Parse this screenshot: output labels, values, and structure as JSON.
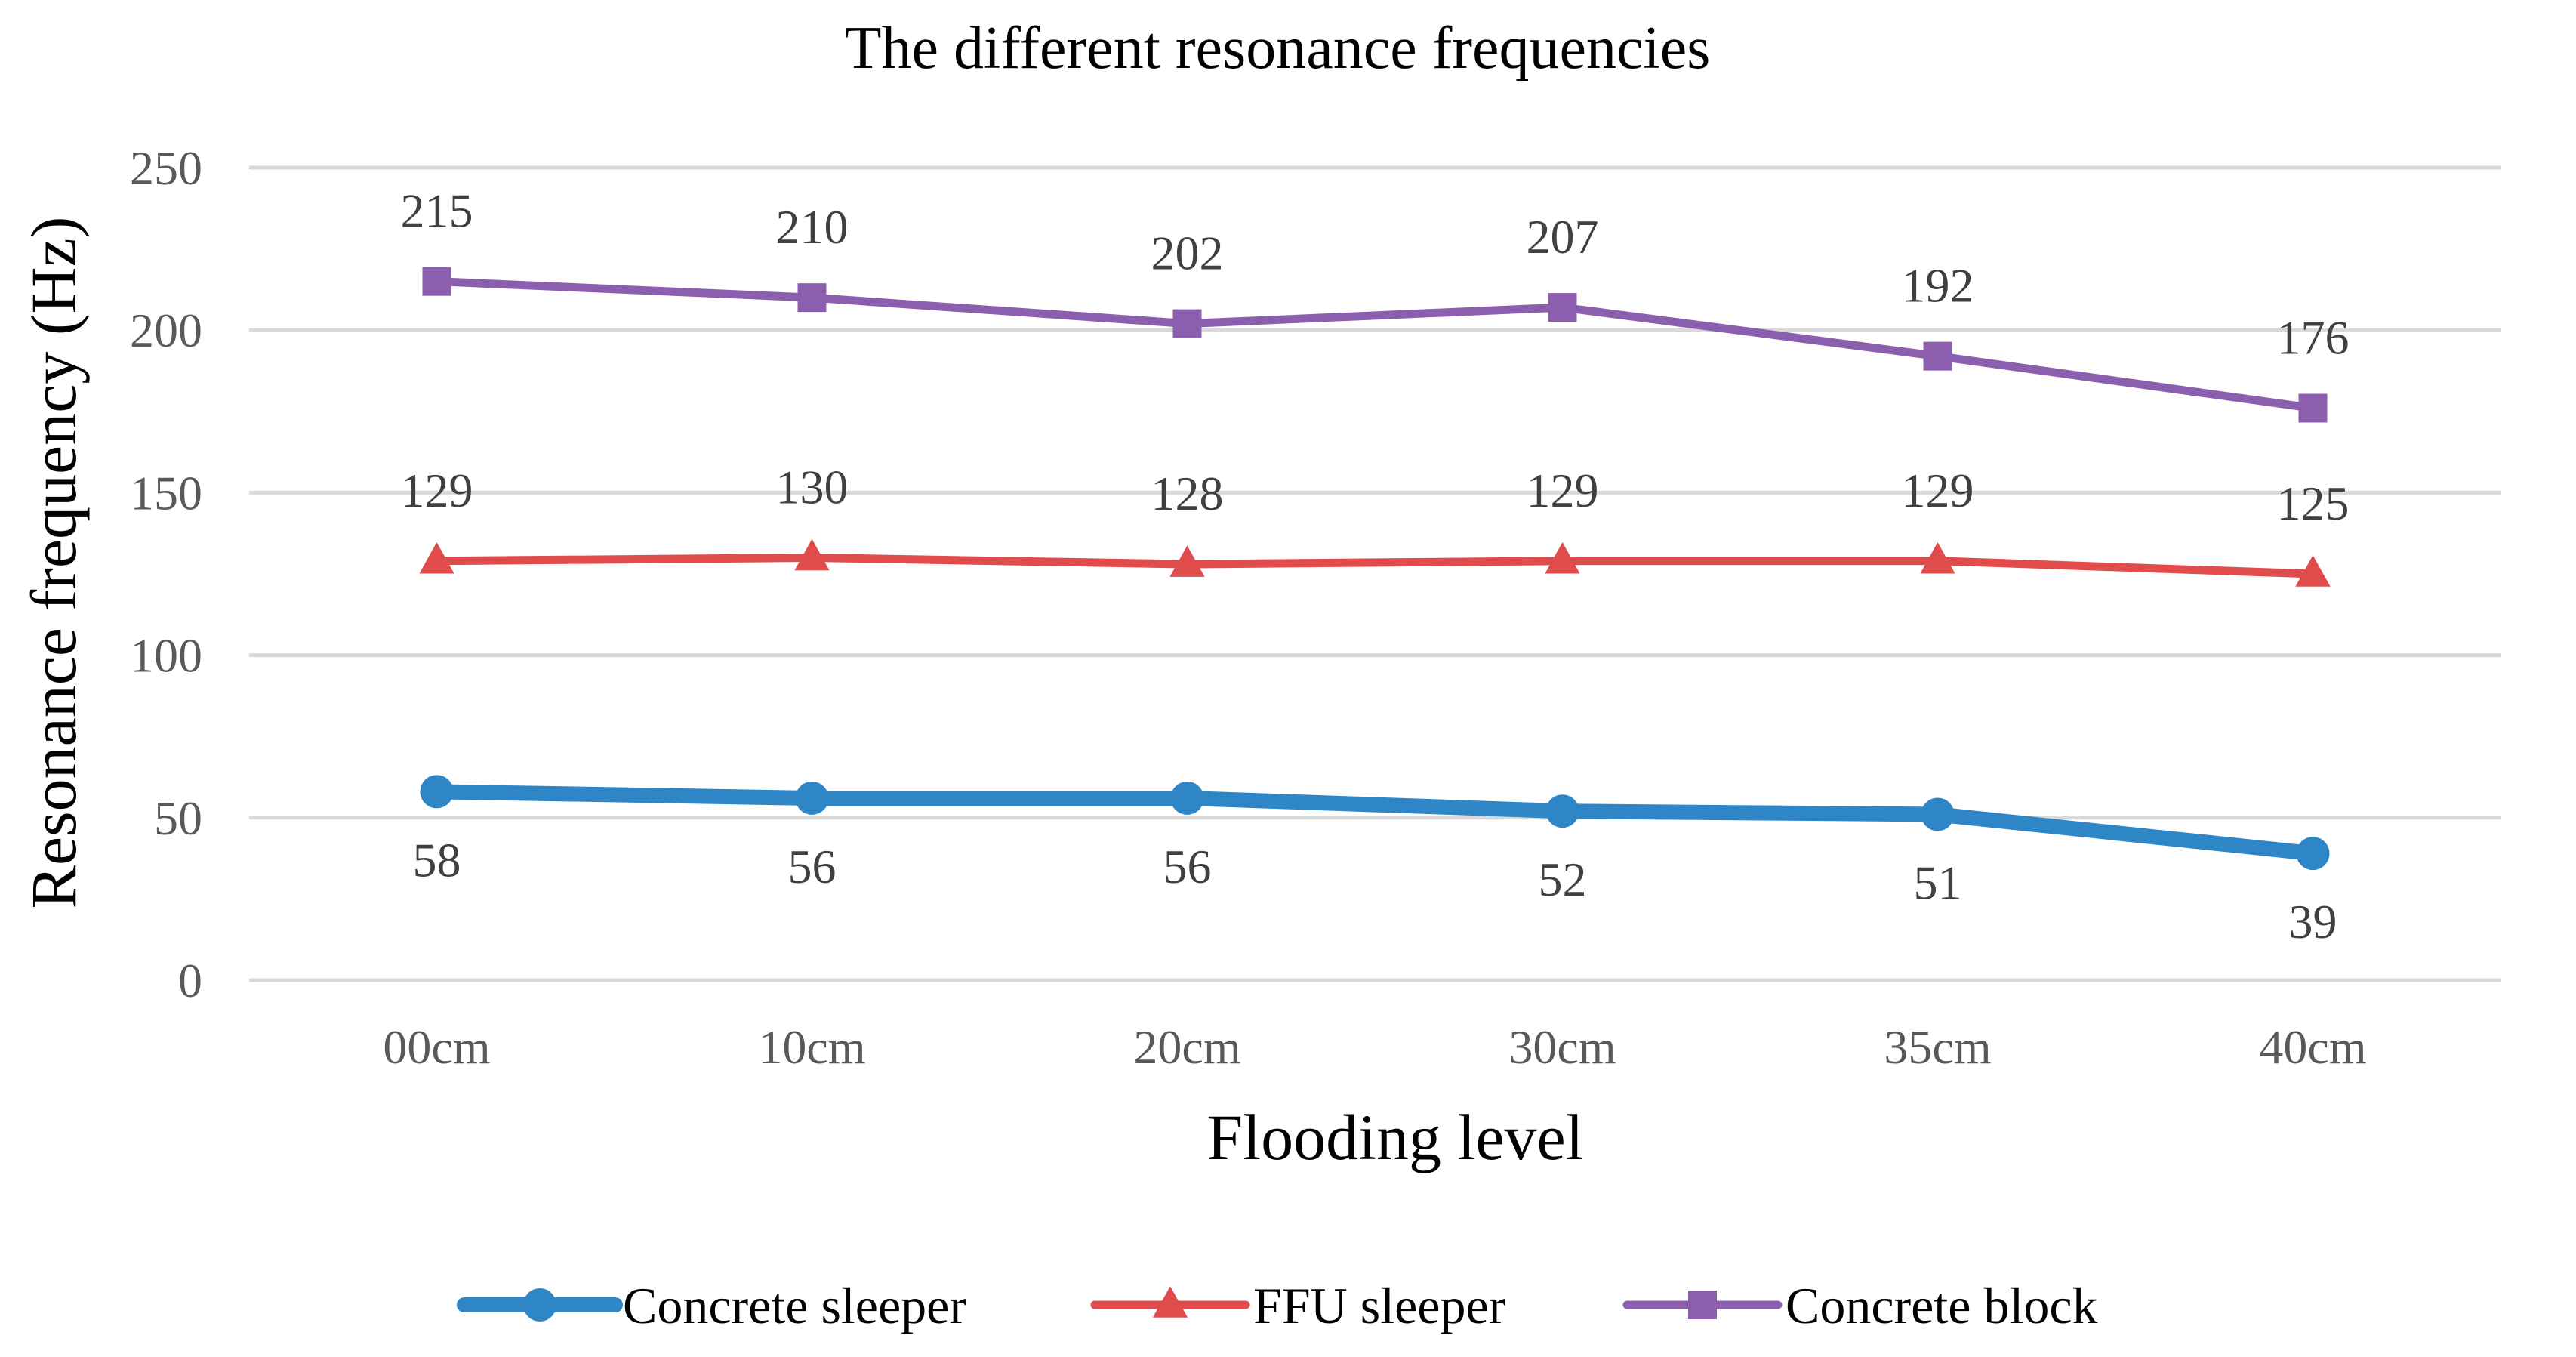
{
  "chart_data": {
    "type": "line",
    "title": "The different resonance frequencies",
    "xlabel": "Flooding level",
    "ylabel": "Resonance frequency (Hz)",
    "categories": [
      "00cm",
      "10cm",
      "20cm",
      "30cm",
      "35cm",
      "40cm"
    ],
    "ylim": [
      0,
      250
    ],
    "yticks": [
      0,
      50,
      100,
      150,
      200,
      250
    ],
    "ytick_labels": [
      "0",
      "50",
      "100",
      "150",
      "200",
      "250"
    ],
    "grid": true,
    "legend_position": "bottom",
    "series": [
      {
        "name": "Concrete sleeper",
        "values": [
          58,
          56,
          56,
          52,
          51,
          39
        ],
        "labels": [
          "58",
          "56",
          "56",
          "52",
          "51",
          "39"
        ],
        "color": "#2e86c7",
        "marker": "circle",
        "label_position": "below"
      },
      {
        "name": "FFU sleeper",
        "values": [
          129,
          130,
          128,
          129,
          129,
          125
        ],
        "labels": [
          "129",
          "130",
          "128",
          "129",
          "129",
          "125"
        ],
        "color": "#e04b4b",
        "marker": "triangle",
        "label_position": "above"
      },
      {
        "name": "Concrete block",
        "values": [
          215,
          210,
          202,
          207,
          192,
          176
        ],
        "labels": [
          "215",
          "210",
          "202",
          "207",
          "192",
          "176"
        ],
        "color": "#8c5fae",
        "marker": "square",
        "label_position": "above"
      }
    ]
  }
}
